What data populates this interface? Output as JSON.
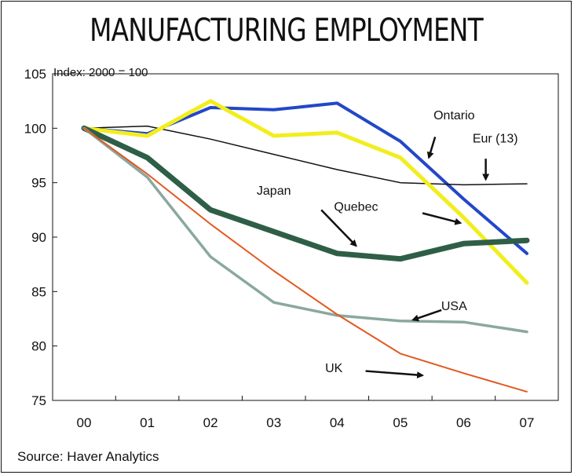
{
  "title": "MANUFACTURING EMPLOYMENT",
  "source": "Source: Haver Analytics",
  "chart_data": {
    "type": "line",
    "title": "MANUFACTURING EMPLOYMENT",
    "ylabel": "Index: 2000 = 100",
    "xlabel": "",
    "x": [
      "00",
      "01",
      "02",
      "03",
      "04",
      "05",
      "06",
      "07"
    ],
    "ylim": [
      75,
      105
    ],
    "yticks": [
      75,
      80,
      85,
      90,
      95,
      100,
      105
    ],
    "grid": false,
    "series": [
      {
        "name": "Ontario",
        "color": "#2347c9",
        "width": 4,
        "values": [
          100,
          99.5,
          101.9,
          101.7,
          102.3,
          98.8,
          93.5,
          88.5
        ]
      },
      {
        "name": "Eur (13)",
        "color": "#111111",
        "width": 1.5,
        "values": [
          100,
          100.2,
          99.0,
          97.6,
          96.2,
          95.0,
          94.8,
          94.9
        ]
      },
      {
        "name": "Quebec",
        "color": "#f2ee1e",
        "width": 5,
        "values": [
          100,
          99.3,
          102.5,
          99.3,
          99.6,
          97.3,
          91.8,
          85.8
        ]
      },
      {
        "name": "Japan",
        "color": "#2f5e47",
        "width": 7,
        "values": [
          100,
          97.3,
          92.5,
          90.5,
          88.5,
          88.0,
          89.4,
          89.7
        ]
      },
      {
        "name": "USA",
        "color": "#8aa8a0",
        "width": 3.5,
        "values": [
          100,
          95.5,
          88.2,
          84.0,
          82.8,
          82.3,
          82.2,
          81.3
        ]
      },
      {
        "name": "UK",
        "color": "#e05a1f",
        "width": 2,
        "values": [
          100,
          95.8,
          91.2,
          86.9,
          82.9,
          79.3,
          77.5,
          75.8
        ]
      }
    ],
    "annotations": [
      {
        "label": "Ontario",
        "x": 5.85,
        "y": 100.8,
        "ax": 5.55,
        "ay": 99.2,
        "bx": 5.45,
        "by": 97.3
      },
      {
        "label": "Eur (13)",
        "x": 6.5,
        "y": 98.7,
        "ax": 6.35,
        "ay": 97.2,
        "bx": 6.35,
        "by": 95.3
      },
      {
        "label": "Japan",
        "x": 3.0,
        "y": 93.9,
        "ax": 3.75,
        "ay": 92.5,
        "bx": 4.3,
        "by": 89.2
      },
      {
        "label": "Quebec",
        "x": 4.3,
        "y": 92.4,
        "ax": 5.35,
        "ay": 92.2,
        "bx": 5.95,
        "by": 91.3
      },
      {
        "label": "USA",
        "x": 5.85,
        "y": 83.3,
        "ax": 5.65,
        "ay": 83.3,
        "bx": 5.2,
        "by": 82.4
      },
      {
        "label": "UK",
        "x": 3.95,
        "y": 77.6,
        "ax": 4.45,
        "ay": 77.7,
        "bx": 5.35,
        "by": 77.3
      }
    ]
  }
}
